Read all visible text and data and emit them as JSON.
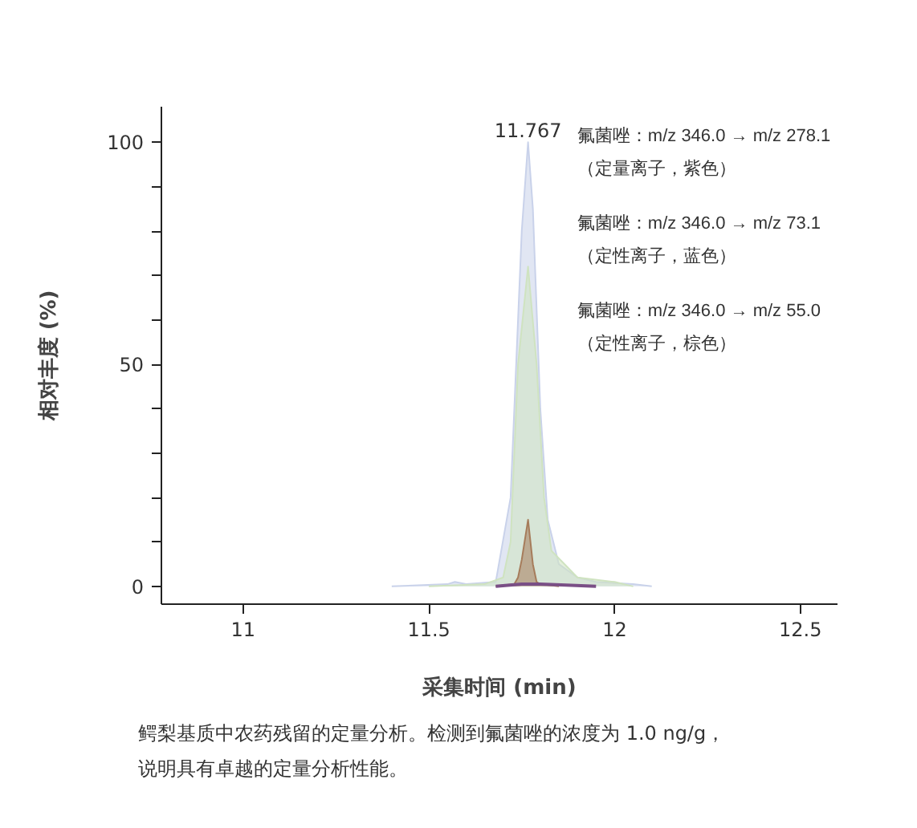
{
  "chart_data": {
    "type": "area",
    "xlabel": "采集时间 (min)",
    "ylabel": "相对丰度 (%)",
    "xlim": [
      10.78,
      12.6
    ],
    "ylim": [
      -4,
      108
    ],
    "xticks": [
      11,
      11.5,
      12,
      12.5
    ],
    "yticks": [
      0,
      {
        "value": 10,
        "label": null
      },
      {
        "value": 20,
        "label": null
      },
      {
        "value": 30,
        "label": null
      },
      {
        "value": 40,
        "label": null
      },
      50,
      {
        "value": 60,
        "label": null
      },
      {
        "value": 70,
        "label": null
      },
      {
        "value": 80,
        "label": null
      },
      {
        "value": 90,
        "label": null
      },
      100
    ],
    "grid": false,
    "series": [
      {
        "color": "#c9d2ea",
        "x": [
          11.4,
          11.55,
          11.57,
          11.6,
          11.68,
          11.72,
          11.75,
          11.767,
          11.78,
          11.8,
          11.82,
          11.85,
          11.9,
          11.95,
          12.05,
          12.1
        ],
        "values": [
          0,
          0.5,
          1,
          0.5,
          1,
          20,
          80,
          100,
          85,
          40,
          15,
          5,
          2,
          1,
          0.5,
          0
        ]
      },
      {
        "color": "#cfe3c0",
        "x": [
          11.5,
          11.65,
          11.7,
          11.72,
          11.74,
          11.767,
          11.79,
          11.81,
          11.83,
          11.9,
          12.0,
          12.05
        ],
        "values": [
          0,
          0.5,
          2,
          10,
          50,
          72,
          50,
          20,
          8,
          2,
          1,
          0
        ]
      },
      {
        "color": "#a67c5b",
        "x": [
          11.68,
          11.73,
          11.74,
          11.75,
          11.767,
          11.78,
          11.79,
          11.8,
          11.85
        ],
        "values": [
          0,
          0.5,
          2,
          6,
          15,
          5,
          1,
          0.5,
          0
        ]
      },
      {
        "type": "line",
        "color": "#7a4f86",
        "x": [
          11.68,
          11.75,
          11.8,
          11.87,
          11.95
        ],
        "values": [
          0,
          0.5,
          0.5,
          0.3,
          0
        ]
      }
    ],
    "annotations": [
      {
        "text": "11.767",
        "x": 11.767,
        "y": 100
      },
      "氟菌唑：m/z 346.0 → m/z 278.1",
      "（定量离子，紫色）",
      "氟菌唑：m/z 346.0 → m/z 73.1",
      "（定性离子，蓝色）",
      "氟菌唑：m/z 346.0 → m/z 55.0",
      "（定性离子，棕色）",
      "鳄梨基质中农药残留的定量分析。检测到氟菌唑的浓度为 1.0 ng/g，",
      "说明具有卓越的定量分析性能。"
    ]
  }
}
